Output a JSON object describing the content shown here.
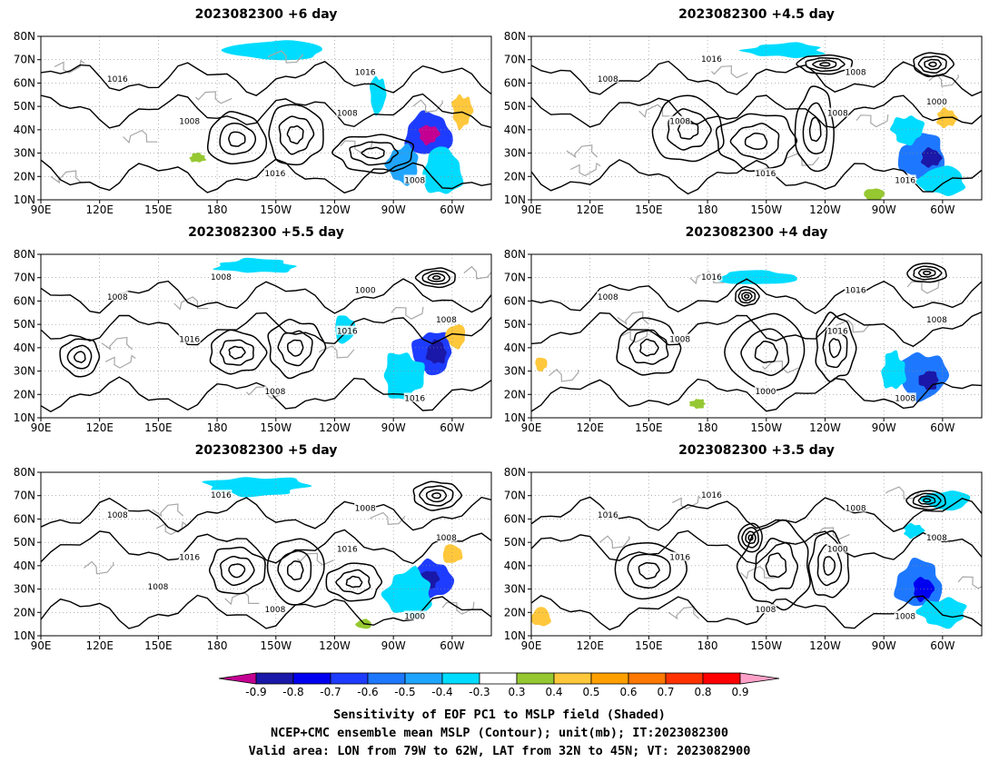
{
  "chart_data": {
    "type": "heatmap",
    "panels": [
      {
        "title": "2023082300 +6 day",
        "contour_labels": [
          "1016",
          "1008",
          "1016",
          "1016",
          "1008",
          "1008"
        ],
        "blobs": [
          [
            -72,
            38,
            12,
            9,
            -0.7
          ],
          [
            -72,
            38,
            5,
            4,
            -0.9
          ],
          [
            -85,
            25,
            8,
            8,
            -0.5
          ],
          [
            -65,
            22,
            10,
            10,
            -0.4
          ],
          [
            -55,
            48,
            5,
            7,
            0.4
          ],
          [
            -150,
            74,
            25,
            4,
            -0.4
          ],
          [
            170,
            28,
            4,
            2,
            0.35
          ],
          [
            -98,
            55,
            4,
            8,
            -0.4
          ]
        ],
        "highs": [
          [
            -170,
            36,
            15,
            11
          ],
          [
            -140,
            38,
            14,
            13
          ],
          [
            -100,
            30,
            20,
            8
          ]
        ],
        "lows": []
      },
      {
        "title": "2023082300 +4.5 day",
        "contour_labels": [
          "1008",
          "1008",
          "1016",
          "1008",
          "1016",
          "1008",
          "1016",
          "1000"
        ],
        "blobs": [
          [
            -70,
            28,
            12,
            10,
            -0.6
          ],
          [
            -66,
            28,
            5,
            4,
            -0.8
          ],
          [
            -78,
            40,
            8,
            6,
            -0.4
          ],
          [
            -60,
            18,
            12,
            6,
            -0.4
          ],
          [
            -58,
            45,
            5,
            4,
            0.4
          ],
          [
            -95,
            12,
            5,
            3,
            0.35
          ],
          [
            -140,
            74,
            20,
            3,
            -0.35
          ]
        ],
        "highs": [
          [
            -155,
            35,
            20,
            12
          ],
          [
            -125,
            40,
            10,
            18
          ],
          [
            170,
            40,
            18,
            14
          ]
        ],
        "lows": [
          [
            -65,
            68,
            10,
            5
          ],
          [
            -120,
            68,
            14,
            4
          ]
        ]
      },
      {
        "title": "2023082300 +5.5 day",
        "contour_labels": [
          "1008",
          "1016",
          "1008",
          "1000",
          "1016",
          "1016",
          "1008",
          "1008"
        ],
        "blobs": [
          [
            -70,
            38,
            10,
            9,
            -0.7
          ],
          [
            -68,
            38,
            5,
            5,
            -0.8
          ],
          [
            -85,
            28,
            10,
            10,
            -0.4
          ],
          [
            -58,
            45,
            5,
            5,
            0.45
          ],
          [
            -160,
            75,
            20,
            3,
            -0.35
          ],
          [
            -115,
            48,
            5,
            6,
            -0.4
          ]
        ],
        "highs": [
          [
            -170,
            38,
            14,
            9
          ],
          [
            -140,
            40,
            14,
            12
          ],
          [
            110,
            36,
            10,
            8
          ]
        ],
        "lows": [
          [
            -68,
            70,
            10,
            4
          ]
        ]
      },
      {
        "title": "2023082300 +4 day",
        "contour_labels": [
          "1008",
          "1008",
          "1000",
          "1016",
          "1008",
          "1016",
          "1016",
          "1008"
        ],
        "blobs": [
          [
            -70,
            28,
            12,
            10,
            -0.6
          ],
          [
            -67,
            26,
            5,
            4,
            -0.8
          ],
          [
            -85,
            30,
            6,
            8,
            -0.4
          ],
          [
            95,
            33,
            3,
            3,
            0.4
          ],
          [
            175,
            16,
            4,
            2,
            0.35
          ],
          [
            -155,
            70,
            20,
            3,
            -0.35
          ]
        ],
        "highs": [
          [
            -150,
            38,
            20,
            16
          ],
          [
            150,
            40,
            16,
            12
          ],
          [
            -115,
            40,
            10,
            14
          ]
        ],
        "lows": [
          [
            -68,
            72,
            10,
            4
          ],
          [
            -160,
            62,
            6,
            4
          ]
        ]
      },
      {
        "title": "2023082300 +5 day",
        "contour_labels": [
          "1008",
          "1016",
          "1008",
          "1008",
          "1000",
          "1016",
          "1016",
          "1008",
          "1008"
        ],
        "blobs": [
          [
            -70,
            34,
            10,
            8,
            -0.7
          ],
          [
            -72,
            34,
            5,
            4,
            -0.8
          ],
          [
            -82,
            28,
            12,
            10,
            -0.4
          ],
          [
            -60,
            45,
            5,
            4,
            0.45
          ],
          [
            -160,
            74,
            25,
            4,
            -0.4
          ],
          [
            -105,
            15,
            4,
            2,
            0.35
          ]
        ],
        "highs": [
          [
            -170,
            38,
            14,
            10
          ],
          [
            -140,
            38,
            14,
            14
          ],
          [
            -110,
            33,
            14,
            8
          ]
        ],
        "lows": [
          [
            -68,
            70,
            12,
            6
          ]
        ]
      },
      {
        "title": "2023082300 +3.5 day",
        "contour_labels": [
          "1016",
          "1016",
          "1008",
          "1008",
          "1008",
          "1000",
          "1016",
          "1008"
        ],
        "blobs": [
          [
            -72,
            32,
            12,
            10,
            -0.6
          ],
          [
            -70,
            30,
            5,
            5,
            -0.75
          ],
          [
            -60,
            20,
            12,
            6,
            -0.4
          ],
          [
            95,
            18,
            5,
            4,
            0.4
          ],
          [
            -75,
            55,
            5,
            3,
            -0.35
          ],
          [
            -58,
            68,
            12,
            4,
            -0.35
          ]
        ],
        "highs": [
          [
            -145,
            40,
            18,
            18
          ],
          [
            -118,
            40,
            10,
            14
          ],
          [
            150,
            38,
            18,
            12
          ]
        ],
        "lows": [
          [
            -158,
            52,
            6,
            6
          ],
          [
            -68,
            68,
            10,
            4
          ]
        ]
      }
    ],
    "x_ticks": [
      "90E",
      "120E",
      "150E",
      "180",
      "150W",
      "120W",
      "90W",
      "60W"
    ],
    "y_ticks": [
      "80N",
      "70N",
      "60N",
      "50N",
      "40N",
      "30N",
      "20N",
      "10N"
    ],
    "xlim": [
      90,
      320
    ],
    "ylim": [
      10,
      80
    ],
    "colorbar": {
      "labels": [
        "-0.9",
        "-0.8",
        "-0.7",
        "-0.6",
        "-0.5",
        "-0.4",
        "-0.3",
        "0.3",
        "0.4",
        "0.5",
        "0.6",
        "0.7",
        "0.8",
        "0.9"
      ],
      "colors": [
        "#c40093",
        "#1a18a8",
        "#0000f0",
        "#1e3cff",
        "#1e78ff",
        "#1fa5ff",
        "#00dcff",
        "#ffffff",
        "#96c832",
        "#ffc83c",
        "#ffa000",
        "#ff7800",
        "#ff3200",
        "#ff0000",
        "#ffa0c8"
      ]
    },
    "caption": [
      "Sensitivity of EOF PC1 to MSLP field (Shaded)",
      "NCEP+CMC ensemble mean MSLP (Contour); unit(mb); IT:2023082300",
      "Valid area: LON from 79W to 62W, LAT from 32N to 45N; VT: 2023082900"
    ]
  }
}
